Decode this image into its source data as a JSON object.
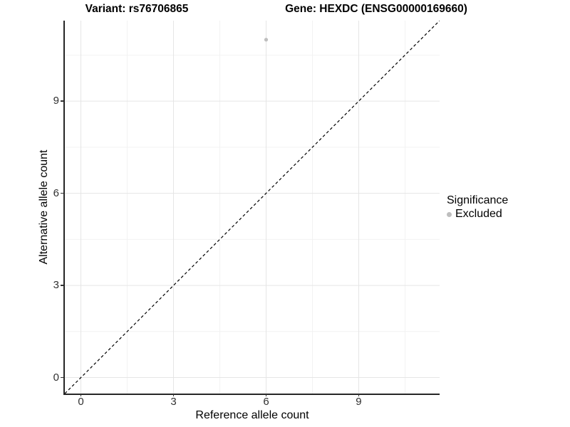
{
  "titles": {
    "variant": "Variant: rs76706865",
    "gene": "Gene: HEXDC (ENSG00000169660)"
  },
  "axes": {
    "x_label": "Reference allele count",
    "y_label": "Alternative allele count"
  },
  "legend": {
    "title": "Significance",
    "items": [
      {
        "label": "Excluded",
        "color": "#bebebe"
      }
    ]
  },
  "chart_data": {
    "type": "scatter",
    "title": "Variant: rs76706865 — Gene: HEXDC (ENSG00000169660)",
    "xlabel": "Reference allele count",
    "ylabel": "Alternative allele count",
    "xlim": [
      -0.52,
      11.62
    ],
    "ylim": [
      -0.52,
      11.62
    ],
    "x_ticks": [
      0,
      3,
      6,
      9
    ],
    "y_ticks": [
      0,
      3,
      6,
      9
    ],
    "minor_ticks_x": [
      1.5,
      4.5,
      7.5,
      10.5
    ],
    "minor_ticks_y": [
      1.5,
      4.5,
      7.5,
      10.5
    ],
    "grid": true,
    "legend_position": "right",
    "series": [
      {
        "name": "Excluded",
        "color": "#bebebe",
        "points": [
          {
            "x": 6,
            "y": 11
          }
        ]
      }
    ],
    "reference_line": {
      "type": "identity-diagonal",
      "slope": 1,
      "intercept": 0,
      "style": "dashed",
      "color": "#000000"
    },
    "colors": {
      "grid_major": "#e5e5e5",
      "grid_minor": "#f2f2f2",
      "axis_line": "#262626",
      "tick_text": "#303030"
    }
  }
}
